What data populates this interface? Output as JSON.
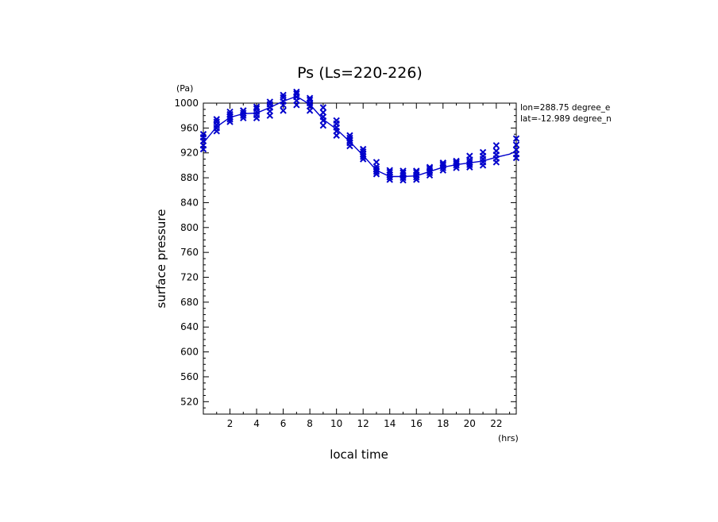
{
  "chart_data": {
    "type": "line",
    "title": "Ps (Ls=220-226)",
    "xlabel": "local time",
    "ylabel": "surface pressure",
    "x_unit": "(hrs)",
    "y_unit": "(Pa)",
    "info_lines": [
      "lon=288.75 degree_e",
      "lat=-12.989 degree_n"
    ],
    "xlim": [
      0,
      23.5
    ],
    "ylim": [
      500,
      1000
    ],
    "x_ticks": [
      2,
      4,
      6,
      8,
      10,
      12,
      14,
      16,
      18,
      20,
      22
    ],
    "x_tick_labels": [
      "2",
      "4",
      "6",
      "8",
      "10",
      "12",
      "14",
      "16",
      "18",
      "20",
      "22"
    ],
    "y_ticks": [
      520,
      560,
      600,
      640,
      680,
      720,
      760,
      800,
      840,
      880,
      920,
      960,
      1000
    ],
    "y_tick_labels": [
      "520",
      "560",
      "600",
      "640",
      "680",
      "720",
      "760",
      "800",
      "840",
      "880",
      "920",
      "960",
      "1000"
    ],
    "grid": false,
    "series": [
      {
        "name": "",
        "style": "line",
        "color": "#0000cc",
        "x": [
          0.0,
          1.0,
          2.0,
          3.0,
          4.0,
          5.0,
          6.0,
          7.0,
          8.0,
          9.0,
          10.0,
          11.0,
          12.0,
          13.0,
          14.0,
          15.0,
          16.0,
          17.0,
          18.0,
          19.0,
          20.0,
          21.0,
          22.0,
          23.0,
          23.5
        ],
        "values": [
          936,
          962,
          977,
          983,
          984,
          993,
          1003,
          1011,
          998,
          974,
          958,
          938,
          916,
          892,
          882,
          882,
          883,
          890,
          897,
          901,
          904,
          907,
          913,
          918,
          923
        ]
      },
      {
        "name": "",
        "style": "scatter",
        "marker": "x",
        "color": "#0000cc",
        "points": [
          [
            0.0,
            926
          ],
          [
            0.0,
            932
          ],
          [
            0.0,
            939
          ],
          [
            0.0,
            945
          ],
          [
            0.0,
            950
          ],
          [
            1.0,
            955
          ],
          [
            1.0,
            960
          ],
          [
            1.0,
            965
          ],
          [
            1.0,
            970
          ],
          [
            1.0,
            974
          ],
          [
            2.0,
            970
          ],
          [
            2.0,
            974
          ],
          [
            2.0,
            978
          ],
          [
            2.0,
            982
          ],
          [
            2.0,
            986
          ],
          [
            3.0,
            976
          ],
          [
            3.0,
            980
          ],
          [
            3.0,
            984
          ],
          [
            3.0,
            988
          ],
          [
            3.0,
            988
          ],
          [
            4.0,
            976
          ],
          [
            4.0,
            981
          ],
          [
            4.0,
            986
          ],
          [
            4.0,
            991
          ],
          [
            4.0,
            994
          ],
          [
            5.0,
            980
          ],
          [
            5.0,
            987
          ],
          [
            5.0,
            993
          ],
          [
            5.0,
            998
          ],
          [
            5.0,
            1002
          ],
          [
            6.0,
            988
          ],
          [
            6.0,
            997
          ],
          [
            6.0,
            1003
          ],
          [
            6.0,
            1009
          ],
          [
            6.0,
            1013
          ],
          [
            7.0,
            997
          ],
          [
            7.0,
            1004
          ],
          [
            7.0,
            1010
          ],
          [
            7.0,
            1015
          ],
          [
            7.0,
            1018
          ],
          [
            8.0,
            988
          ],
          [
            8.0,
            995
          ],
          [
            8.0,
            1000
          ],
          [
            8.0,
            1005
          ],
          [
            8.0,
            1008
          ],
          [
            9.0,
            964
          ],
          [
            9.0,
            972
          ],
          [
            9.0,
            978
          ],
          [
            9.0,
            985
          ],
          [
            9.0,
            993
          ],
          [
            10.0,
            948
          ],
          [
            10.0,
            955
          ],
          [
            10.0,
            961
          ],
          [
            10.0,
            967
          ],
          [
            10.0,
            972
          ],
          [
            11.0,
            931
          ],
          [
            11.0,
            936
          ],
          [
            11.0,
            940
          ],
          [
            11.0,
            944
          ],
          [
            11.0,
            948
          ],
          [
            12.0,
            910
          ],
          [
            12.0,
            914
          ],
          [
            12.0,
            918
          ],
          [
            12.0,
            922
          ],
          [
            12.0,
            926
          ],
          [
            13.0,
            886
          ],
          [
            13.0,
            890
          ],
          [
            13.0,
            894
          ],
          [
            13.0,
            898
          ],
          [
            13.0,
            905
          ],
          [
            14.0,
            877
          ],
          [
            14.0,
            881
          ],
          [
            14.0,
            885
          ],
          [
            14.0,
            889
          ],
          [
            14.0,
            892
          ],
          [
            15.0,
            876
          ],
          [
            15.0,
            880
          ],
          [
            15.0,
            884
          ],
          [
            15.0,
            888
          ],
          [
            15.0,
            891
          ],
          [
            16.0,
            877
          ],
          [
            16.0,
            881
          ],
          [
            16.0,
            885
          ],
          [
            16.0,
            889
          ],
          [
            16.0,
            891
          ],
          [
            17.0,
            884
          ],
          [
            17.0,
            888
          ],
          [
            17.0,
            892
          ],
          [
            17.0,
            895
          ],
          [
            17.0,
            897
          ],
          [
            18.0,
            892
          ],
          [
            18.0,
            896
          ],
          [
            18.0,
            900
          ],
          [
            18.0,
            902
          ],
          [
            18.0,
            904
          ],
          [
            19.0,
            896
          ],
          [
            19.0,
            900
          ],
          [
            19.0,
            903
          ],
          [
            19.0,
            905
          ],
          [
            19.0,
            907
          ],
          [
            20.0,
            897
          ],
          [
            20.0,
            901
          ],
          [
            20.0,
            905
          ],
          [
            20.0,
            909
          ],
          [
            20.0,
            915
          ],
          [
            21.0,
            900
          ],
          [
            21.0,
            905
          ],
          [
            21.0,
            910
          ],
          [
            21.0,
            915
          ],
          [
            21.0,
            921
          ],
          [
            22.0,
            905
          ],
          [
            22.0,
            911
          ],
          [
            22.0,
            917
          ],
          [
            22.0,
            923
          ],
          [
            22.0,
            932
          ],
          [
            23.5,
            912
          ],
          [
            23.5,
            918
          ],
          [
            23.5,
            925
          ],
          [
            23.5,
            933
          ],
          [
            23.5,
            943
          ]
        ]
      }
    ]
  }
}
